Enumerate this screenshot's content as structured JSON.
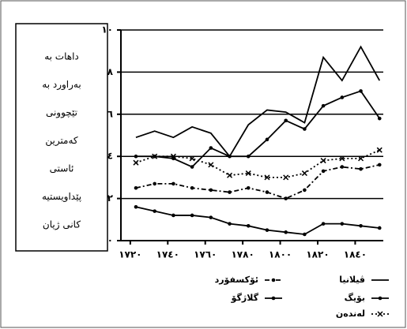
{
  "chart_data": {
    "type": "line",
    "side_text": [
      "داهات   به",
      "بەراورد  به",
      "تێچوونی",
      "کەمترین",
      "ئاستی",
      "پێداویستیە",
      "کانی ژیان"
    ],
    "x": [
      1723,
      1733,
      1743,
      1753,
      1763,
      1773,
      1783,
      1793,
      1803,
      1813,
      1823,
      1833,
      1843,
      1853
    ],
    "xlim": [
      1715,
      1855
    ],
    "xticks": [
      {
        "value": 1720,
        "label": "١٧٢٠"
      },
      {
        "value": 1740,
        "label": "١٧٤٠"
      },
      {
        "value": 1760,
        "label": "١٧٦٠"
      },
      {
        "value": 1780,
        "label": "١٧٨٠"
      },
      {
        "value": 1800,
        "label": "١٨٠٠"
      },
      {
        "value": 1820,
        "label": "١٨٢٠"
      },
      {
        "value": 1840,
        "label": "١٨٤٠"
      }
    ],
    "ylim": [
      0,
      10
    ],
    "yticks": [
      {
        "value": 0,
        "label": "٠"
      },
      {
        "value": 2,
        "label": "٢"
      },
      {
        "value": 4,
        "label": "٤"
      },
      {
        "value": 6,
        "label": "٦"
      },
      {
        "value": 8,
        "label": "٨"
      },
      {
        "value": 10,
        "label": "١٠"
      }
    ],
    "grid": true,
    "series": [
      {
        "name": "ڤیلانیا",
        "color": "#000000",
        "dash": "none",
        "marker": "none",
        "values": [
          4.9,
          5.2,
          4.9,
          5.4,
          5.1,
          4.0,
          5.5,
          6.2,
          6.1,
          5.6,
          8.7,
          7.6,
          9.2,
          7.6
        ]
      },
      {
        "name": "بۆیگ",
        "color": "#000000",
        "dash": "none",
        "marker": "dot",
        "values": [
          4.0,
          4.0,
          3.9,
          3.5,
          4.4,
          4.0,
          4.0,
          4.8,
          5.7,
          5.3,
          6.4,
          6.8,
          7.1,
          5.8
        ]
      },
      {
        "name": "لەندەن",
        "color": "#000000",
        "dash": "2,3",
        "marker": "x",
        "values": [
          3.7,
          4.0,
          4.0,
          3.9,
          3.6,
          3.1,
          3.2,
          3.0,
          3.0,
          3.2,
          3.8,
          3.9,
          3.9,
          4.3
        ]
      },
      {
        "name": "ئۆکسفۆرد",
        "color": "#000000",
        "dash": "6,3,2,3",
        "marker": "dot",
        "values": [
          2.5,
          2.7,
          2.7,
          2.5,
          2.4,
          2.3,
          2.5,
          2.3,
          2.0,
          2.4,
          3.3,
          3.5,
          3.4,
          3.6
        ]
      },
      {
        "name": "گلاژگۆ",
        "color": "#000000",
        "dash": "none",
        "marker": "dot",
        "values": [
          1.6,
          1.4,
          1.2,
          1.2,
          1.1,
          0.8,
          0.7,
          0.5,
          0.4,
          0.3,
          0.8,
          0.8,
          0.7,
          0.6
        ]
      }
    ]
  }
}
